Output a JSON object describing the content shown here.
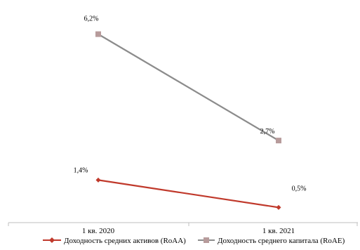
{
  "chart_data": {
    "type": "line",
    "categories": [
      "1 кв. 2020",
      "1 кв. 2021"
    ],
    "ylim": [
      0,
      7
    ],
    "grid": false,
    "legend_position": "bottom",
    "series": [
      {
        "name": "Доходность средних активов (RoAA)",
        "values": [
          1.4,
          0.5
        ],
        "labels": [
          "1,4%",
          "0,5%"
        ],
        "color": "#C0392B",
        "marker": "diamond"
      },
      {
        "name": "Доходность среднего капитала (RoAE)",
        "values": [
          6.2,
          2.7
        ],
        "labels": [
          "6,2%",
          "2,7%"
        ],
        "color": "#8C8C8C",
        "marker_color": "#B79B9B",
        "marker": "square"
      }
    ]
  }
}
